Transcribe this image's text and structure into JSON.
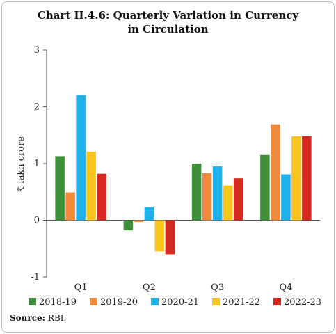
{
  "title_line1": "Chart II.4.6: Quarterly Variation in Currency",
  "title_line2": "in Circulation",
  "source_label": "Source:",
  "source_value": "RBI.",
  "colors": {
    "2018-19": "#3f8f3a",
    "2019-20": "#f28a3c",
    "2020-21": "#1fb2ea",
    "2021-22": "#f9c51b",
    "2022-23": "#d5281f"
  },
  "chart_data": {
    "type": "bar",
    "title": "Chart II.4.6: Quarterly Variation in Currency in Circulation",
    "ylabel": "₹ lakh crore",
    "xlabel": "",
    "ylim": [
      -1,
      3
    ],
    "yticks": [
      "-1",
      "0",
      "1",
      "2",
      "3"
    ],
    "categories": [
      "Q1",
      "Q2",
      "Q3",
      "Q4"
    ],
    "legend_position": "bottom",
    "series": [
      {
        "name": "2018-19",
        "values": [
          1.13,
          -0.18,
          1.0,
          1.15
        ]
      },
      {
        "name": "2019-20",
        "values": [
          0.49,
          -0.03,
          0.83,
          1.69
        ]
      },
      {
        "name": "2020-21",
        "values": [
          2.21,
          0.23,
          0.95,
          0.81
        ]
      },
      {
        "name": "2021-22",
        "values": [
          1.21,
          -0.55,
          0.61,
          1.48
        ]
      },
      {
        "name": "2022-23",
        "values": [
          0.82,
          -0.6,
          0.74,
          1.48
        ]
      }
    ]
  }
}
